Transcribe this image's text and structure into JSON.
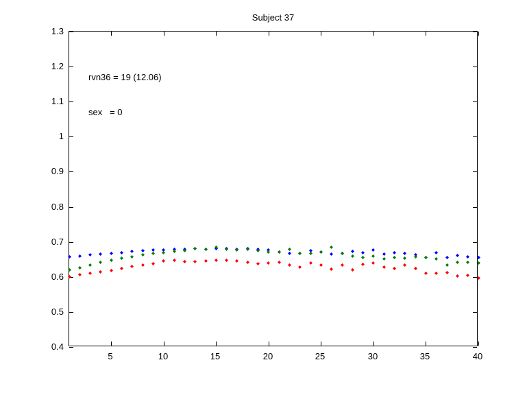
{
  "figure": {
    "background": "#ffffff",
    "axis_color": "#000000"
  },
  "chart_data": {
    "type": "scatter",
    "title": "Subject 37",
    "annotation": {
      "line1": "rvn36 = 19 (12.06)",
      "line2": "sex   = 0"
    },
    "marker": "diamond-dot",
    "grid": false,
    "legend": "none",
    "xlabel": "",
    "ylabel": "",
    "xlim": [
      1,
      40
    ],
    "ylim": [
      0.4,
      1.3
    ],
    "x_ticks": [
      5,
      10,
      15,
      20,
      25,
      30,
      35,
      40
    ],
    "y_ticks": [
      1.3,
      1.2,
      1.1,
      1,
      0.9,
      0.8,
      0.7,
      0.6,
      0.5,
      0.4
    ],
    "y_tick_labels": [
      "1.3",
      "1.2",
      "1.1",
      "1",
      "0.9",
      "0.8",
      "0.7",
      "0.6",
      "0.5",
      "0.4"
    ],
    "x": [
      1,
      2,
      3,
      4,
      5,
      6,
      7,
      8,
      9,
      10,
      11,
      12,
      13,
      14,
      15,
      16,
      17,
      18,
      19,
      20,
      21,
      22,
      23,
      24,
      25,
      26,
      27,
      28,
      29,
      30,
      31,
      32,
      33,
      34,
      35,
      36,
      37,
      38,
      39,
      40
    ],
    "series": [
      {
        "name": "blue",
        "color": "#0000FF",
        "values": [
          0.658,
          0.66,
          0.663,
          0.666,
          0.668,
          0.67,
          0.672,
          0.674,
          0.676,
          0.677,
          0.678,
          0.679,
          0.68,
          0.679,
          0.681,
          0.68,
          0.679,
          0.681,
          0.678,
          0.677,
          0.671,
          0.668,
          0.668,
          0.675,
          0.671,
          0.665,
          0.668,
          0.672,
          0.67,
          0.677,
          0.666,
          0.67,
          0.668,
          0.664,
          0.656,
          0.67,
          0.655,
          0.662,
          0.657,
          0.656
        ]
      },
      {
        "name": "green",
        "color": "#007F00",
        "values": [
          0.62,
          0.626,
          0.633,
          0.641,
          0.647,
          0.653,
          0.658,
          0.663,
          0.667,
          0.67,
          0.672,
          0.674,
          0.681,
          0.678,
          0.684,
          0.678,
          0.677,
          0.679,
          0.675,
          0.671,
          0.671,
          0.678,
          0.668,
          0.668,
          0.671,
          0.684,
          0.668,
          0.66,
          0.655,
          0.66,
          0.651,
          0.655,
          0.653,
          0.658,
          0.655,
          0.651,
          0.634,
          0.642,
          0.642,
          0.639
        ]
      },
      {
        "name": "red",
        "color": "#FF0000",
        "values": [
          0.601,
          0.606,
          0.61,
          0.614,
          0.619,
          0.624,
          0.629,
          0.634,
          0.637,
          0.645,
          0.648,
          0.643,
          0.644,
          0.645,
          0.648,
          0.647,
          0.646,
          0.641,
          0.638,
          0.64,
          0.642,
          0.633,
          0.627,
          0.64,
          0.633,
          0.623,
          0.634,
          0.621,
          0.636,
          0.64,
          0.627,
          0.624,
          0.633,
          0.625,
          0.611,
          0.611,
          0.613,
          0.602,
          0.605,
          0.597
        ]
      }
    ]
  }
}
